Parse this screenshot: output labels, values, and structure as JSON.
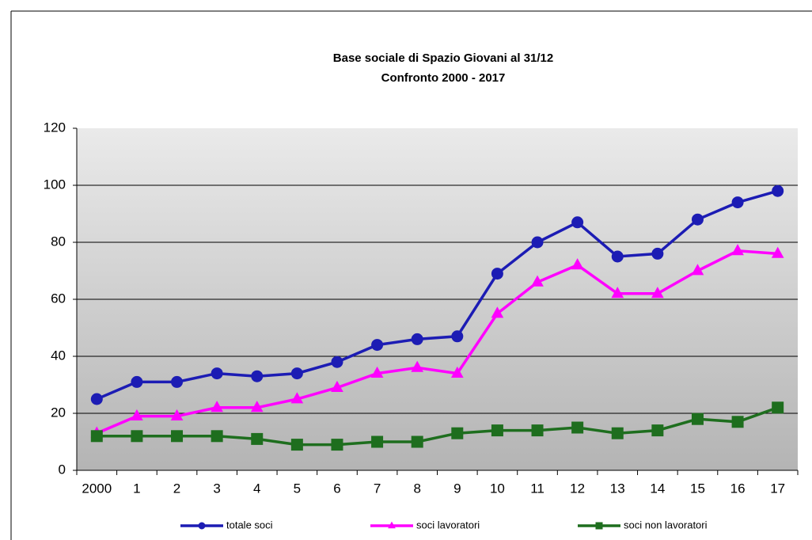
{
  "chart_data": {
    "type": "line",
    "title": "Base sociale  di Spazio Giovani al 31/12",
    "subtitle": "Confronto 2000  - 2017",
    "categories": [
      "2000",
      "1",
      "2",
      "3",
      "4",
      "5",
      "6",
      "7",
      "8",
      "9",
      "10",
      "11",
      "12",
      "13",
      "14",
      "15",
      "16",
      "17"
    ],
    "series": [
      {
        "name": "totale soci",
        "color": "#1c1cb4",
        "marker": "circle",
        "values": [
          25,
          31,
          31,
          34,
          33,
          34,
          38,
          44,
          46,
          47,
          69,
          80,
          87,
          75,
          76,
          88,
          94,
          98
        ]
      },
      {
        "name": "soci lavoratori",
        "color": "#ff00ff",
        "marker": "triangle",
        "values": [
          13,
          19,
          19,
          22,
          22,
          25,
          29,
          34,
          36,
          34,
          55,
          66,
          72,
          62,
          62,
          70,
          77,
          76
        ]
      },
      {
        "name": "soci non lavoratori",
        "color": "#1e6e1e",
        "marker": "square",
        "values": [
          12,
          12,
          12,
          12,
          11,
          9,
          9,
          10,
          10,
          13,
          14,
          14,
          15,
          13,
          14,
          18,
          17,
          22
        ]
      }
    ],
    "ylim": [
      0,
      120
    ],
    "yticks": [
      0,
      20,
      40,
      60,
      80,
      100,
      120
    ],
    "grid": true,
    "legend": "bottom"
  }
}
